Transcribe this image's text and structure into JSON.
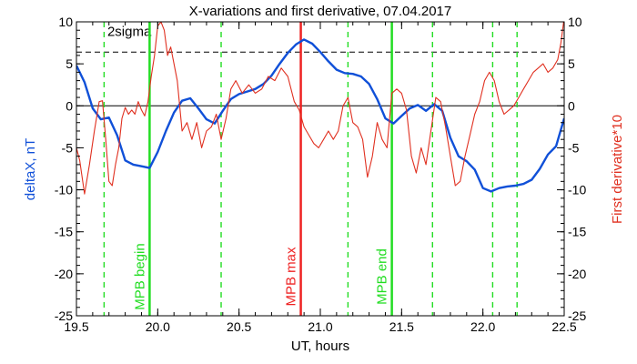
{
  "chart_data": {
    "type": "line",
    "title": "X-variations and first derivative, 07.04.2017",
    "xlabel": "UT, hours",
    "ylabel_left": "deltaX, nT",
    "ylabel_right": "First derivative*10",
    "xlim": [
      19.5,
      22.5
    ],
    "ylim": [
      -25,
      10
    ],
    "x_ticks": [
      "19.5",
      "20.0",
      "20.5",
      "21.0",
      "21.5",
      "22.0",
      "22.5"
    ],
    "x_tick_values": [
      19.5,
      20.0,
      20.5,
      21.0,
      21.5,
      22.0,
      22.5
    ],
    "y_ticks_left": [
      "10",
      "5",
      "0",
      "-5",
      "-10",
      "-15",
      "-20",
      "-25"
    ],
    "y_ticks_right": [
      "10",
      "5",
      "0",
      "-5",
      "-10",
      "-15",
      "-20",
      "-25"
    ],
    "y_tick_values": [
      10,
      5,
      0,
      -5,
      -10,
      -15,
      -20,
      -25
    ],
    "colors": {
      "deltaX": "#1050d8",
      "derivative": "#e03020",
      "green": "#22dd22",
      "red": "#ee2222"
    },
    "threshold": {
      "label": "2sigma",
      "value": 6.4
    },
    "zero_line": 0,
    "vertical_markers": [
      {
        "label": "MPB begin",
        "x": 19.95,
        "color": "#22dd22",
        "style": "solid"
      },
      {
        "label": "MPB max",
        "x": 20.88,
        "color": "#ee2222",
        "style": "solid"
      },
      {
        "label": "MPB end",
        "x": 21.44,
        "color": "#22dd22",
        "style": "solid"
      }
    ],
    "dashed_markers_x": [
      19.67,
      20.39,
      21.17,
      21.69,
      22.06,
      22.21
    ],
    "series": [
      {
        "name": "deltaX",
        "color": "#1050d8",
        "x": [
          19.5,
          19.55,
          19.6,
          19.65,
          19.7,
          19.75,
          19.8,
          19.85,
          19.9,
          19.95,
          20.0,
          20.05,
          20.1,
          20.15,
          20.2,
          20.25,
          20.3,
          20.35,
          20.4,
          20.45,
          20.5,
          20.55,
          20.6,
          20.65,
          20.7,
          20.75,
          20.8,
          20.85,
          20.9,
          20.95,
          21.0,
          21.05,
          21.1,
          21.15,
          21.2,
          21.25,
          21.3,
          21.35,
          21.4,
          21.45,
          21.5,
          21.55,
          21.6,
          21.65,
          21.7,
          21.75,
          21.8,
          21.85,
          21.9,
          21.95,
          22.0,
          22.05,
          22.1,
          22.15,
          22.2,
          22.25,
          22.3,
          22.35,
          22.4,
          22.45,
          22.5
        ],
        "values": [
          4.8,
          2.8,
          -0.3,
          -1.6,
          -1.4,
          -3.5,
          -6.5,
          -7.0,
          -7.2,
          -7.4,
          -5.5,
          -3.0,
          -0.8,
          0.6,
          0.9,
          -0.3,
          -1.6,
          -2.1,
          -0.6,
          0.8,
          1.4,
          1.7,
          2.0,
          2.6,
          3.6,
          5.0,
          6.3,
          7.3,
          7.9,
          7.4,
          6.4,
          5.3,
          4.3,
          3.9,
          3.8,
          3.5,
          2.6,
          0.8,
          -1.5,
          -2.1,
          -1.2,
          -0.3,
          0.1,
          -0.6,
          0.2,
          -0.6,
          -3.8,
          -6.0,
          -6.6,
          -7.6,
          -9.8,
          -10.2,
          -9.8,
          -9.6,
          -9.5,
          -9.3,
          -8.8,
          -7.5,
          -5.8,
          -4.8,
          -1.5
        ]
      },
      {
        "name": "First derivative*10",
        "color": "#e03020",
        "x": [
          19.5,
          19.52,
          19.55,
          19.58,
          19.61,
          19.64,
          19.66,
          19.68,
          19.7,
          19.72,
          19.74,
          19.76,
          19.78,
          19.8,
          19.82,
          19.84,
          19.86,
          19.88,
          19.9,
          19.92,
          19.94,
          19.96,
          19.98,
          20.0,
          20.02,
          20.04,
          20.06,
          20.08,
          20.1,
          20.12,
          20.15,
          20.18,
          20.21,
          20.24,
          20.27,
          20.3,
          20.33,
          20.36,
          20.39,
          20.42,
          20.45,
          20.48,
          20.52,
          20.56,
          20.6,
          20.64,
          20.68,
          20.72,
          20.76,
          20.8,
          20.84,
          20.87,
          20.9,
          20.93,
          20.96,
          20.99,
          21.02,
          21.05,
          21.08,
          21.11,
          21.14,
          21.17,
          21.2,
          21.23,
          21.26,
          21.29,
          21.32,
          21.35,
          21.38,
          21.41,
          21.44,
          21.47,
          21.5,
          21.53,
          21.56,
          21.59,
          21.62,
          21.65,
          21.68,
          21.71,
          21.74,
          21.77,
          21.8,
          21.83,
          21.86,
          21.89,
          21.92,
          21.95,
          21.98,
          22.01,
          22.04,
          22.07,
          22.1,
          22.13,
          22.16,
          22.19,
          22.22,
          22.25,
          22.28,
          22.31,
          22.34,
          22.37,
          22.4,
          22.43,
          22.46,
          22.48,
          22.5
        ],
        "values": [
          -5.0,
          -6.5,
          -10.5,
          -7.0,
          -3.0,
          0.5,
          0.6,
          -4.0,
          -9.0,
          -9.5,
          -7.0,
          -5.0,
          -1.5,
          -0.2,
          -1.0,
          -0.5,
          -1.0,
          0.5,
          -0.5,
          -1.2,
          0.5,
          3.5,
          6.0,
          9.5,
          10.0,
          9.0,
          6.0,
          7.0,
          5.0,
          3.0,
          -3.0,
          -2.0,
          -4.0,
          -2.0,
          -5.0,
          -3.0,
          -2.5,
          -1.0,
          -4.0,
          -1.5,
          2.0,
          3.0,
          1.5,
          2.5,
          1.5,
          2.0,
          3.5,
          3.0,
          4.5,
          3.5,
          0.5,
          -0.5,
          -2.5,
          -3.5,
          -4.5,
          -5.0,
          -4.0,
          -3.0,
          -4.0,
          -3.0,
          0.0,
          1.0,
          -2.0,
          -2.5,
          -4.0,
          -8.5,
          -6.0,
          -2.0,
          -4.0,
          -5.0,
          1.5,
          2.0,
          1.5,
          -0.5,
          -6.0,
          -8.0,
          -5.0,
          -7.0,
          -3.0,
          1.0,
          0.5,
          -2.5,
          -6.0,
          -9.5,
          -9.0,
          -6.0,
          -3.5,
          -1.0,
          0.5,
          3.0,
          4.0,
          3.0,
          0.5,
          -1.0,
          -0.5,
          0.0,
          1.0,
          2.0,
          3.0,
          4.0,
          4.5,
          5.0,
          4.0,
          4.5,
          5.5,
          7.5,
          10.5
        ]
      }
    ]
  }
}
